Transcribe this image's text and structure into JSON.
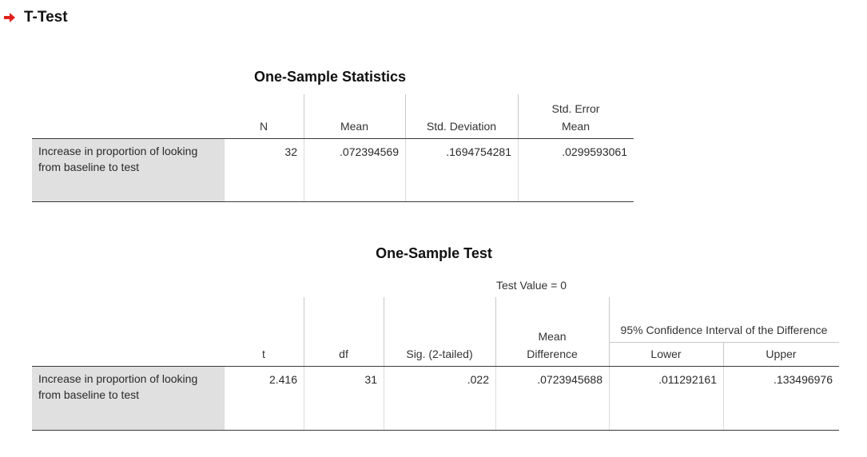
{
  "header": {
    "title": "T-Test"
  },
  "tables": [
    {
      "title": "One-Sample Statistics",
      "columns": [
        "N",
        "Mean",
        "Std. Deviation",
        "Std. Error Mean"
      ],
      "rows": [
        {
          "label": "Increase in proportion of looking from baseline to test",
          "cells": [
            "32",
            ".072394569",
            ".1694754281",
            ".0299593061"
          ]
        }
      ]
    },
    {
      "title": "One-Sample Test",
      "test_value": "Test Value = 0",
      "group_header": "95% Confidence Interval of the Difference",
      "columns": [
        "t",
        "df",
        "Sig. (2-tailed)",
        "Mean Difference",
        "Lower",
        "Upper"
      ],
      "rows": [
        {
          "label": "Increase in proportion of looking from baseline to test",
          "cells": [
            "2.416",
            "31",
            ".022",
            ".0723945688",
            ".011292161",
            ".133496976"
          ]
        }
      ]
    }
  ]
}
